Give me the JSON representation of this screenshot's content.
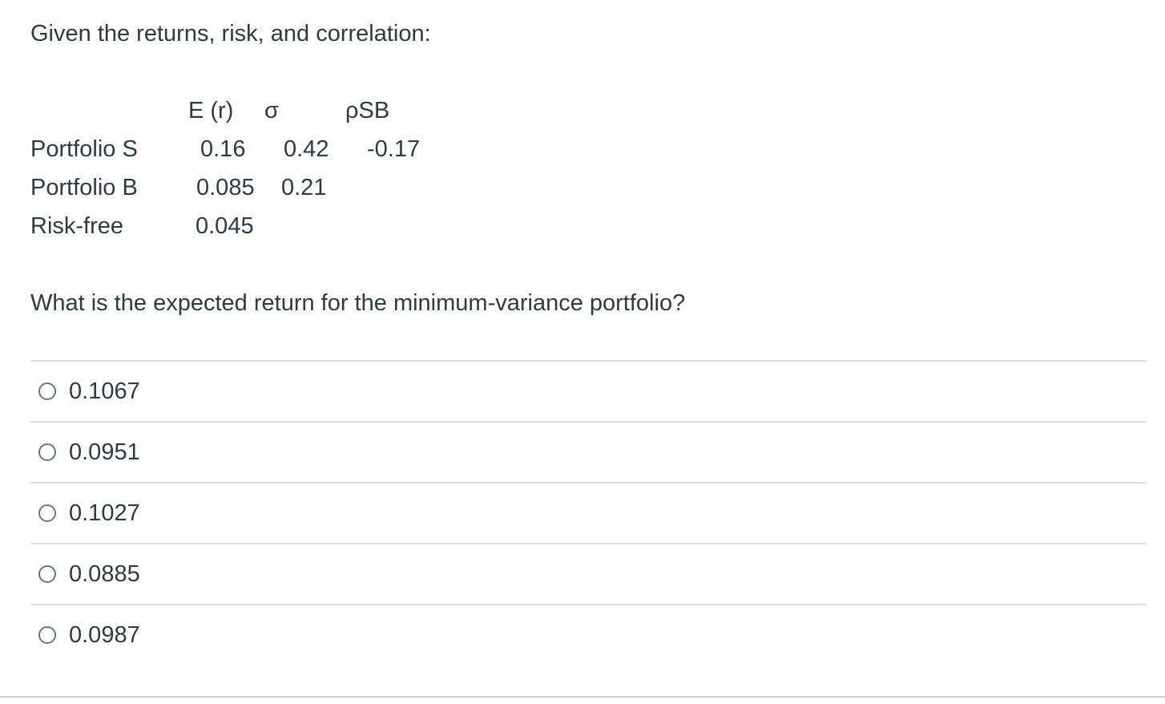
{
  "intro_text": "Given the returns, risk, and correlation:",
  "table": {
    "headers": [
      "E (r)",
      "σ",
      "ρSB"
    ],
    "rows": [
      {
        "label": "Portfolio S",
        "er": "0.16",
        "sigma": "0.42",
        "rho": "-0.17"
      },
      {
        "label": "Portfolio B",
        "er": "0.085",
        "sigma": "0.21",
        "rho": ""
      },
      {
        "label": "Risk-free",
        "er": "0.045",
        "sigma": "",
        "rho": ""
      }
    ]
  },
  "question_text": "What is the expected return for the minimum-variance portfolio?",
  "answers": [
    {
      "label": "0.1067",
      "selected": false
    },
    {
      "label": "0.0951",
      "selected": false
    },
    {
      "label": "0.1027",
      "selected": false
    },
    {
      "label": "0.0885",
      "selected": false
    },
    {
      "label": "0.0987",
      "selected": false
    }
  ]
}
